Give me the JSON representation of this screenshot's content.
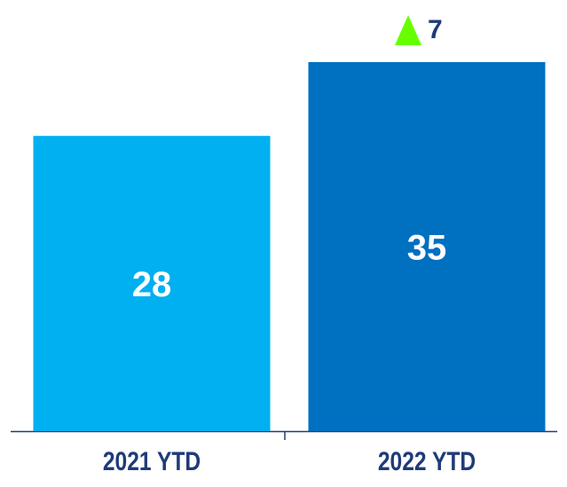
{
  "chart_data": {
    "type": "bar",
    "categories": [
      "2021 YTD",
      "2022 YTD"
    ],
    "values": [
      28,
      35
    ],
    "colors": [
      "#00b0f0",
      "#0070c0"
    ],
    "annotation": "7",
    "annotation_color": "#66ff00"
  }
}
